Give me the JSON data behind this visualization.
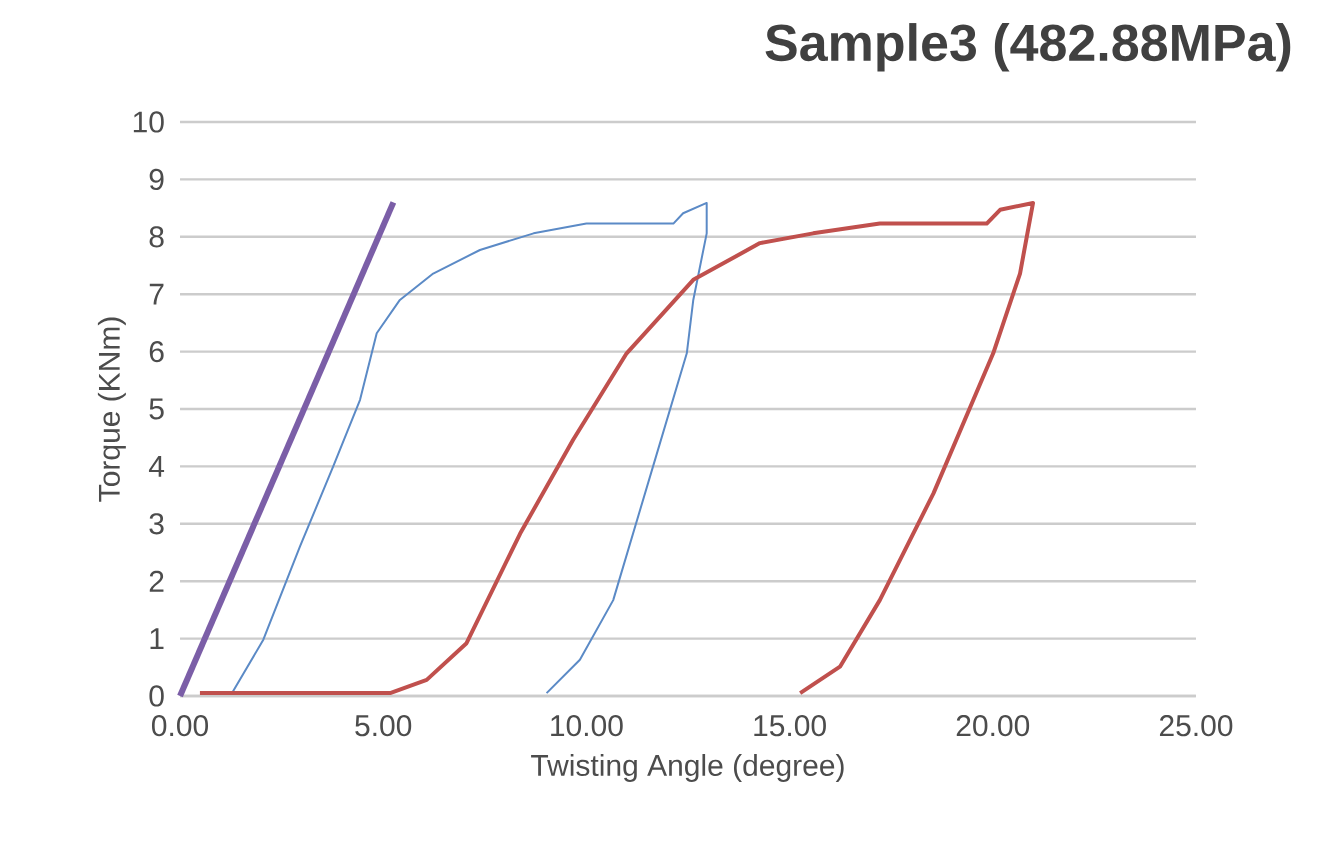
{
  "chart_data": {
    "type": "line",
    "title": "Sample3 (482.88MPa)",
    "xlabel": "Twisting Angle (degree)",
    "ylabel": "Torque (KNm)",
    "xlim": [
      0,
      25
    ],
    "ylim": [
      0,
      10
    ],
    "xticks": [
      {
        "value": 0,
        "label": "0.00"
      },
      {
        "value": 5,
        "label": "5.00"
      },
      {
        "value": 10,
        "label": "10.00"
      },
      {
        "value": 15,
        "label": "15.00"
      },
      {
        "value": 20,
        "label": "20.00"
      },
      {
        "value": 25,
        "label": "25.00"
      }
    ],
    "yticks": [
      0,
      1,
      2,
      3,
      4,
      5,
      6,
      7,
      8,
      9,
      10
    ],
    "grid": "y",
    "marker": "none",
    "line_style": "solid",
    "series": [
      {
        "color": "#7b5ea7",
        "x": [
          0,
          5.25
        ],
        "values": [
          0,
          8.6
        ]
      },
      {
        "color": "#5b8ac6",
        "x": [
          1.28,
          2.05,
          2.95,
          3.77,
          4.43,
          4.84,
          5.41,
          6.23,
          7.38,
          8.7,
          10.0,
          12.14,
          12.38,
          12.96,
          12.96,
          12.63,
          12.47,
          11.64,
          10.66,
          9.84,
          9.02
        ],
        "values": [
          0.05,
          0.98,
          2.6,
          4.0,
          5.16,
          6.32,
          6.9,
          7.36,
          7.77,
          8.06,
          8.23,
          8.23,
          8.41,
          8.59,
          8.06,
          6.9,
          5.97,
          4.0,
          1.67,
          0.63,
          0.05
        ]
      },
      {
        "color": "#c0504d",
        "x": [
          0.49,
          5.17,
          6.07,
          7.05,
          8.37,
          9.67,
          10.99,
          12.63,
          14.27,
          15.58,
          17.22,
          19.85,
          20.18,
          20.99,
          20.67,
          20.01,
          18.54,
          17.22,
          16.24,
          15.26
        ],
        "values": [
          0.05,
          0.05,
          0.28,
          0.92,
          2.83,
          4.46,
          5.97,
          7.25,
          7.89,
          8.06,
          8.23,
          8.23,
          8.47,
          8.59,
          7.36,
          5.97,
          3.53,
          1.67,
          0.51,
          0.05
        ]
      }
    ]
  }
}
